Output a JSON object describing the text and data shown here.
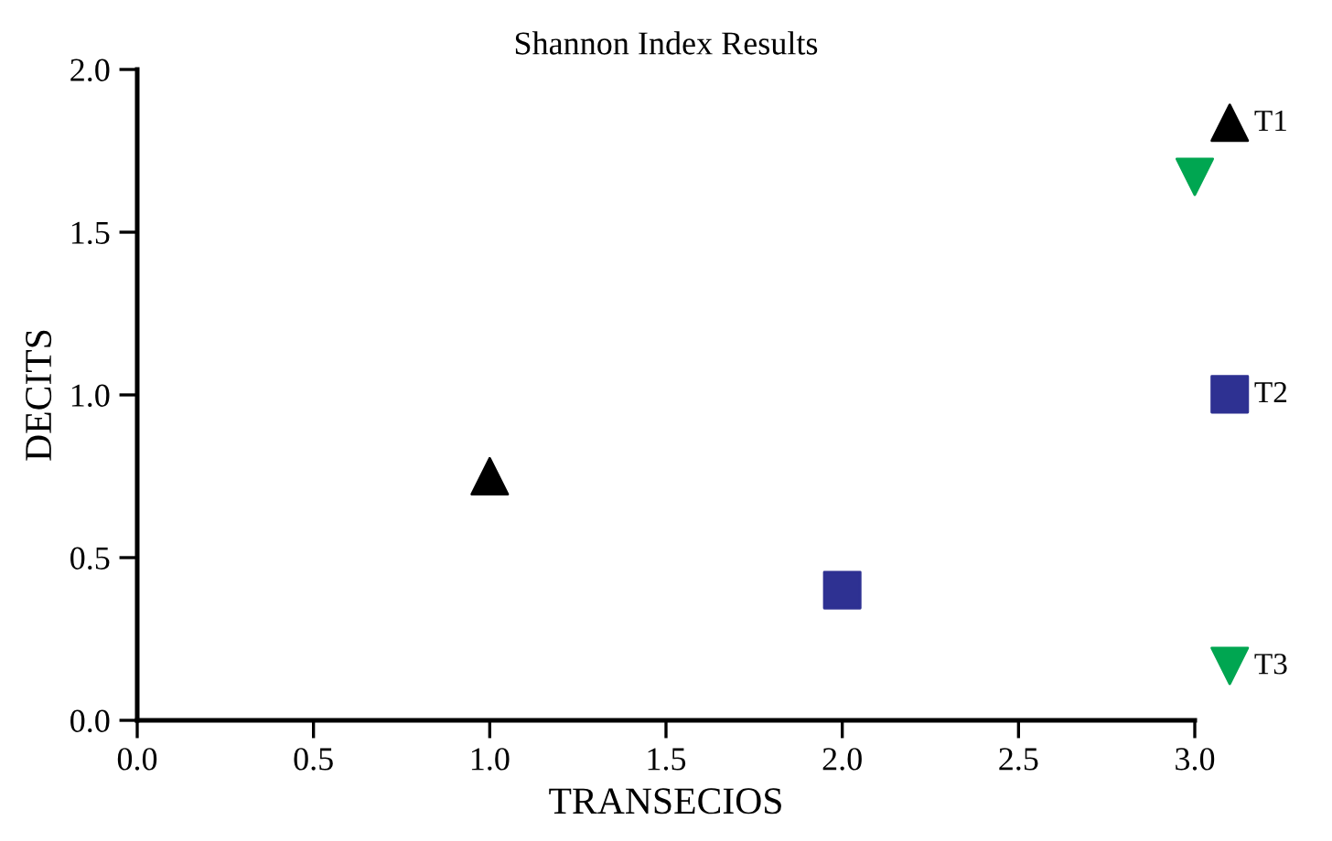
{
  "chart_data": {
    "type": "scatter",
    "title": "Shannon Index Results",
    "xlabel": "TRANSECIOS",
    "ylabel": "DECITS",
    "series": [
      {
        "name": "T1",
        "color": "#000000",
        "marker": "triangle",
        "x": [
          1.0
        ],
        "values": [
          0.75
        ]
      },
      {
        "name": "T2",
        "color": "#2e3192",
        "marker": "square",
        "x": [
          2.0
        ],
        "values": [
          0.4
        ]
      },
      {
        "name": "T3",
        "color": "#00a651",
        "marker": "triangle_down",
        "x": [
          3.0
        ],
        "values": [
          1.67
        ]
      }
    ],
    "xlim": [
      0,
      3.0
    ],
    "ylim": [
      0,
      2.0
    ],
    "xticks": [
      {
        "value": 0,
        "label": "0.0"
      },
      0.5,
      {
        "value": 1,
        "label": "1.0"
      },
      1.5,
      {
        "value": 2,
        "label": "2.0"
      },
      2.5,
      {
        "value": 3,
        "label": "3.0"
      }
    ],
    "yticks": [
      {
        "value": 0,
        "label": "0.0"
      },
      0.5,
      {
        "value": 1,
        "label": "1.0"
      },
      1.5,
      {
        "value": 2,
        "label": "2.0"
      }
    ],
    "grid": false,
    "legend": "right"
  }
}
